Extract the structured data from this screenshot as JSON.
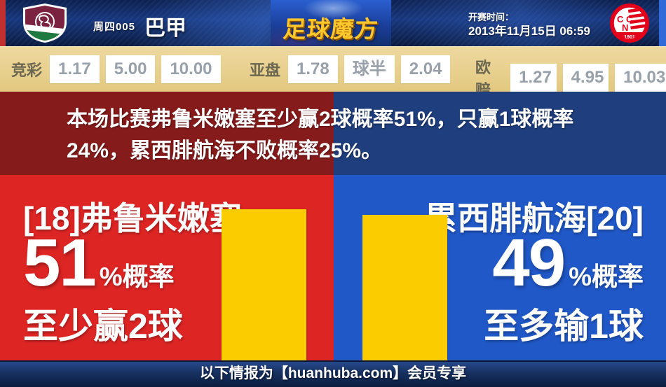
{
  "header": {
    "match_code": "周四005",
    "league": "巴甲",
    "brand": "足球魔方",
    "kickoff_label": "开赛时间：",
    "kickoff_time": "2013年11月15日 06:59"
  },
  "crests": {
    "home": "fluminense-crest",
    "away": "nautico-crest",
    "away_letters": "CNC",
    "away_year": "1901"
  },
  "odds": {
    "sections": [
      {
        "label": "竞彩",
        "values": [
          "1.17",
          "5.00",
          "10.00"
        ]
      },
      {
        "label": "亚盘",
        "values": [
          "1.78",
          "球半",
          "2.04"
        ]
      },
      {
        "label": "欧赔",
        "values": [
          "1.27",
          "4.95",
          "10.03"
        ]
      }
    ]
  },
  "summary": {
    "line1": "本场比赛弗鲁米嫩塞至少赢2球概率51%，只赢1球概率",
    "line2": "24%，累西腓航海不败概率25%。"
  },
  "home": {
    "name": "[18]弗鲁米嫩塞",
    "probability": "51",
    "suffix": "%概率",
    "outcome": "至少赢2球"
  },
  "away": {
    "name": "累西腓航海[20]",
    "probability": "49",
    "suffix": "%概率",
    "outcome": "至多输1球"
  },
  "footer": {
    "text": "以下情报为【huanhuba.com】会员专享"
  },
  "colors": {
    "home_red": "#DD2524",
    "away_blue": "#2058C8",
    "summary_red": "#861B1B",
    "summary_blue": "#1F3E7D",
    "bar_yellow": "#FBCD00",
    "odds_band_tan": "#E7CF8D",
    "brand_gold": "#FFC72C",
    "odds_value_gray": "#98A0AA"
  },
  "chart_data": {
    "type": "bar",
    "categories": [
      "弗鲁米嫩塞",
      "累西腓航海"
    ],
    "values": [
      51,
      49
    ],
    "unit": "%",
    "bar_color": "#FBCD00",
    "legend_position": "none",
    "grid": false
  }
}
